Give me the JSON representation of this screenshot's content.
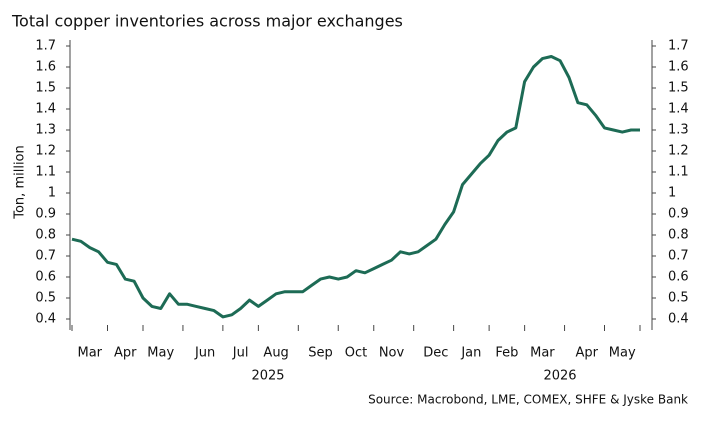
{
  "chart_data": {
    "type": "line",
    "title": "Total copper inventories across major exchanges",
    "y_label": "Ton, million",
    "source": "Source: Macrobond, LME, COMEX, SHFE & Jyske Bank",
    "categories": [
      null,
      null,
      "Mar",
      null,
      null,
      null,
      "Apr",
      null,
      null,
      null,
      "May",
      null,
      null,
      null,
      null,
      "Jun",
      null,
      null,
      null,
      "Jul",
      null,
      null,
      null,
      "Aug",
      null,
      null,
      null,
      null,
      "Sep",
      null,
      null,
      null,
      "Oct",
      null,
      null,
      null,
      "Nov",
      null,
      null,
      null,
      null,
      "Dec",
      null,
      null,
      null,
      "Jan",
      null,
      null,
      null,
      "Feb",
      null,
      null,
      null,
      "Mar",
      null,
      null,
      null,
      null,
      "Apr",
      null,
      null,
      null,
      "May",
      null,
      null
    ],
    "year_labels": [
      "2025",
      "2026"
    ],
    "series": [
      {
        "name": "Total copper inventories",
        "color": "#1d6b55",
        "values": [
          0.78,
          0.77,
          0.74,
          0.72,
          0.67,
          0.66,
          0.59,
          0.58,
          0.5,
          0.46,
          0.45,
          0.52,
          0.47,
          0.47,
          0.46,
          0.45,
          0.44,
          0.41,
          0.42,
          0.45,
          0.49,
          0.46,
          0.49,
          0.52,
          0.53,
          0.53,
          0.53,
          0.56,
          0.59,
          0.6,
          0.59,
          0.6,
          0.63,
          0.62,
          0.64,
          0.66,
          0.68,
          0.72,
          0.71,
          0.72,
          0.75,
          0.78,
          0.85,
          0.91,
          1.04,
          1.09,
          1.14,
          1.18,
          1.25,
          1.29,
          1.31,
          1.53,
          1.6,
          1.64,
          1.65,
          1.63,
          1.55,
          1.43,
          1.42,
          1.37,
          1.31,
          1.3,
          1.29,
          1.3,
          1.3
        ]
      }
    ],
    "ylim": [
      0.4,
      1.7
    ],
    "yticks": [
      0.4,
      0.5,
      0.6,
      0.7,
      0.8,
      0.9,
      1.0,
      1.1,
      1.2,
      1.3,
      1.4,
      1.5,
      1.6,
      1.7
    ],
    "y2lim": [
      0.4,
      1.7
    ],
    "y2ticks": [
      0.4,
      0.5,
      0.6,
      0.7,
      0.8,
      0.9,
      1.0,
      1.1,
      1.2,
      1.3,
      1.4,
      1.5,
      1.6,
      1.7
    ]
  }
}
